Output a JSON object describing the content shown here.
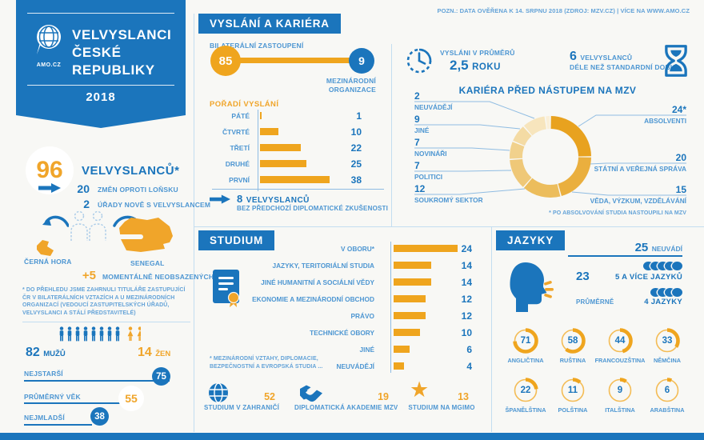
{
  "note_top": "POZN.: DATA OVĚŘENA K 14. SRPNU 2018 (ZDROJ: MZV.CZ) | VÍCE NA WWW.AMO.CZ",
  "colors": {
    "blue": "#1B75BC",
    "label_blue": "#4D96D2",
    "orange": "#EFA51E",
    "divider": "#C3DDF0",
    "background": "#F8F8F5"
  },
  "ribbon": {
    "logo_text": "AMO.CZ",
    "title_line1": "VELVYSLANCI",
    "title_line2": "ČESKÉ",
    "title_line3": "REPUBLIKY",
    "year": "2018"
  },
  "left": {
    "total": {
      "value": "96",
      "label": "VELVYSLANCŮ*"
    },
    "changes": {
      "value": "20",
      "label": "ZMĚN OPROTI LOŇSKU"
    },
    "new_offices": {
      "value": "2",
      "label": "ÚŘADY NOVĚ S VELVYSLANCEM"
    },
    "map_left_label": "ČERNÁ HORA",
    "map_right_label": "SENEGAL",
    "vacant": {
      "value": "+5",
      "label": "MOMENTÁLNĚ NEOBSAZENÝCH"
    },
    "footnote": "* DO PŘEHLEDU JSME ZAHRNULI TITULÁŘE ZASTUPUJÍCÍ ČR V BILATERÁLNÍCH VZTAZÍCH A U MEZINÁRODNÍCH ORGANIZACÍ (VEDOUCÍ ZASTUPITELSKÝCH ÚŘADŮ, VELVYSLANCI A STÁLÍ PŘEDSTAVITELÉ)",
    "men": {
      "value": "82",
      "label": "MUŽŮ",
      "icon_count": 8
    },
    "women": {
      "value": "14",
      "label": "ŽEN",
      "icon_count": 2
    },
    "ages": [
      {
        "label": "NEJSTARŠÍ",
        "value": "75",
        "style": "blue"
      },
      {
        "label": "PRŮMĚRNÝ VĚK",
        "value": "55",
        "style": "orange"
      },
      {
        "label": "NEJMLADŠÍ",
        "value": "38",
        "style": "blue"
      }
    ]
  },
  "mission": {
    "title": "VYSLÁNÍ A KARIÉRA",
    "bilateral_label": "BILATERÁLNÍ ZASTOUPENÍ",
    "bilateral_value": "85",
    "intl_value": "9",
    "intl_label_1": "MEZINÁRODNÍ",
    "intl_label_2": "ORGANIZACE",
    "order_title": "POŘADÍ VYSLÁNÍ",
    "order": [
      {
        "label": "PÁTÉ",
        "value": 1
      },
      {
        "label": "ČTVRTÉ",
        "value": 10
      },
      {
        "label": "TŘETÍ",
        "value": 22
      },
      {
        "label": "DRUHÉ",
        "value": 25
      },
      {
        "label": "PRVNÍ",
        "value": 38
      }
    ],
    "no_experience": {
      "value": "8",
      "label": "VELVYSLANCŮ",
      "sub": "BEZ PŘEDCHOZÍ DIPLOMATICKÉ ZKUŠENOSTI"
    }
  },
  "study": {
    "title": "STUDIUM",
    "fields": [
      {
        "label": "V OBORU*",
        "value": 24
      },
      {
        "label": "JAZYKY, TERITORIÁLNÍ STUDIA",
        "value": 14
      },
      {
        "label": "JINÉ HUMANITNÍ A SOCIÁLNÍ VĚDY",
        "value": 14
      },
      {
        "label": "EKONOMIE A MEZINÁRODNÍ OBCHOD",
        "value": 12
      },
      {
        "label": "PRÁVO",
        "value": 12
      },
      {
        "label": "TECHNICKÉ OBORY",
        "value": 10
      },
      {
        "label": "JINÉ",
        "value": 6
      },
      {
        "label": "NEUVÁDĚJÍ",
        "value": 4
      }
    ],
    "footnote_1": "* MEZINÁRODNÍ VZTAHY, DIPLOMACIE,",
    "footnote_2": "BEZPEČNOSTNÍ A EVROPSKÁ STUDIA ...",
    "stats": [
      {
        "icon": "globe-icon",
        "value": "52",
        "label": "STUDIUM V ZAHRANIČÍ"
      },
      {
        "icon": "handshake-icon",
        "value": "19",
        "label": "DIPLOMATICKÁ AKADEMIE MZV"
      },
      {
        "icon": "star-icon",
        "value": "13",
        "label": "STUDIUM NA MGIMO"
      }
    ]
  },
  "career": {
    "avg_label": "VYSLÁNI V PRŮMĚRŮ",
    "avg_value": "2,5",
    "avg_unit": "ROKU",
    "longer_value": "6",
    "longer_label": "VELVYSLANCŮ",
    "longer_sub": "DÉLE NEŽ STANDARDNÍ DOBU",
    "title": "KARIÉRA PŘED NÁSTUPEM NA MZV",
    "left_items": [
      {
        "value": "2",
        "label": "NEUVÁDĚJÍ"
      },
      {
        "value": "9",
        "label": "JINÉ"
      },
      {
        "value": "7",
        "label": "NOVINÁŘI"
      },
      {
        "value": "7",
        "label": "POLITICI"
      },
      {
        "value": "12",
        "label": "SOUKROMÝ SEKTOR"
      }
    ],
    "right_items": [
      {
        "value": "24*",
        "label": "ABSOLVENTI"
      },
      {
        "value": "20",
        "label": "STÁTNÍ A VEŘEJNÁ SPRÁVA"
      },
      {
        "value": "15",
        "label": "VĚDA, VÝZKUM, VZDĚLÁVÁNÍ"
      }
    ],
    "footnote": "* PO ABSOLVOVÁNÍ STUDIA NASTOUPILI NA MZV",
    "donut_values": [
      24,
      20,
      15,
      12,
      7,
      7,
      9,
      2
    ],
    "donut_colors": [
      "#E8A21F",
      "#EAAF3E",
      "#ECBD5C",
      "#EFC878",
      "#F1D18C",
      "#F4DBA4",
      "#F7E5BD",
      "#FAEFD8"
    ]
  },
  "languages": {
    "title": "JAZYKY",
    "not_stated_value": "25",
    "not_stated_label": "NEUVÁDÍ",
    "five_plus_value": "23",
    "five_plus_label": "5 A VÍCE JAZYKŮ",
    "five_plus_bubbles": 5,
    "average_label": "PRŮMĚRNĚ",
    "average_value_label": "4 JAZYKY",
    "average_bubbles": 4,
    "ring_max": 96,
    "rings": [
      {
        "label": "ANGLIČTINA",
        "value": 71
      },
      {
        "label": "RUŠTINA",
        "value": 58
      },
      {
        "label": "FRANCOUZŠTINA",
        "value": 44
      },
      {
        "label": "NĚMČINA",
        "value": 33
      },
      {
        "label": "ŠPANĚLŠTINA",
        "value": 22
      },
      {
        "label": "POLŠTINA",
        "value": 11
      },
      {
        "label": "ITALŠTINA",
        "value": 9
      },
      {
        "label": "ARABŠTINA",
        "value": 6
      }
    ]
  },
  "chart_data": [
    {
      "type": "bar",
      "title": "POŘADÍ VYSLÁNÍ",
      "orientation": "horizontal",
      "categories": [
        "PÁTÉ",
        "ČTVRTÉ",
        "TŘETÍ",
        "DRUHÉ",
        "PRVNÍ"
      ],
      "values": [
        1,
        10,
        22,
        25,
        38
      ]
    },
    {
      "type": "bar",
      "title": "STUDIUM",
      "orientation": "horizontal",
      "categories": [
        "V OBORU*",
        "JAZYKY, TERITORIÁLNÍ STUDIA",
        "JINÉ HUMANITNÍ A SOCIÁLNÍ VĚDY",
        "EKONOMIE A MEZINÁRODNÍ OBCHOD",
        "PRÁVO",
        "TECHNICKÉ OBORY",
        "JINÉ",
        "NEUVÁDĚJÍ"
      ],
      "values": [
        24,
        14,
        14,
        12,
        12,
        10,
        6,
        4
      ]
    },
    {
      "type": "pie",
      "title": "KARIÉRA PŘED NÁSTUPEM NA MZV",
      "donut": true,
      "labels": [
        "ABSOLVENTI",
        "STÁTNÍ A VEŘEJNÁ SPRÁVA",
        "VĚDA, VÝZKUM, VZDĚLÁVÁNÍ",
        "SOUKROMÝ SEKTOR",
        "POLITICI",
        "NOVINÁŘI",
        "JINÉ",
        "NEUVÁDĚJÍ"
      ],
      "values": [
        24,
        20,
        15,
        12,
        7,
        7,
        9,
        2
      ]
    },
    {
      "type": "bar",
      "title": "JAZYKY",
      "style": "progress-rings",
      "max": 96,
      "categories": [
        "ANGLIČTINA",
        "RUŠTINA",
        "FRANCOUZŠTINA",
        "NĚMČINA",
        "ŠPANĚLŠTINA",
        "POLŠTINA",
        "ITALŠTINA",
        "ARABŠTINA"
      ],
      "values": [
        71,
        58,
        44,
        33,
        22,
        11,
        9,
        6
      ]
    }
  ]
}
